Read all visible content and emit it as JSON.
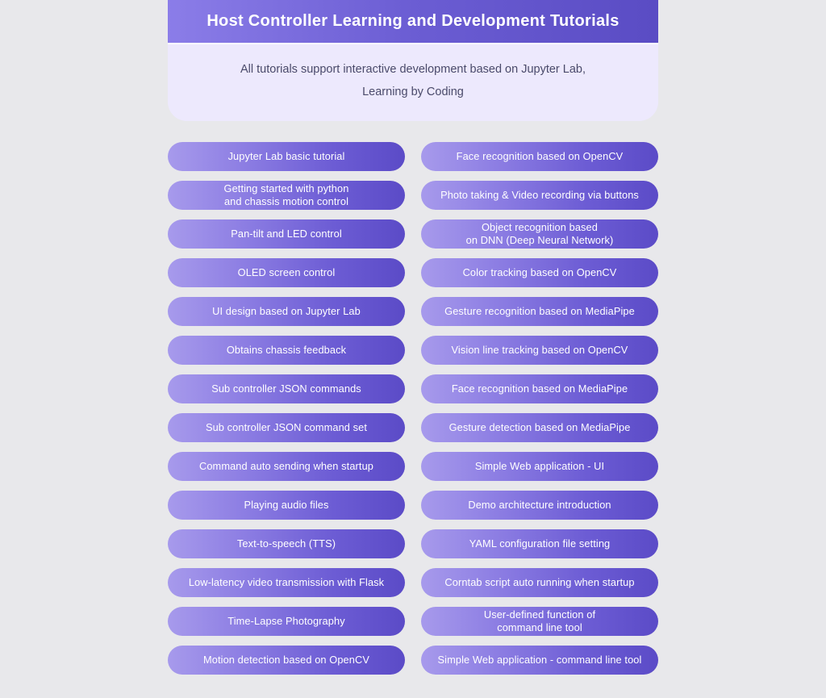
{
  "header": {
    "title": "Host Controller Learning and Development Tutorials",
    "subtitle_line1": "All tutorials support interactive development based on Jupyter Lab,",
    "subtitle_line2": "Learning by Coding"
  },
  "colors": {
    "page_bg": "#e8e8eb",
    "header_card_bg": "#ede9fd",
    "pill_gradient_start": "#a79aec",
    "pill_gradient_mid": "#8a7be2",
    "pill_gradient_end": "#5b4bc7",
    "title_gradient_start": "#8b7de8",
    "title_gradient_end": "#5a4cc4",
    "subtitle_text": "#4a4a6a",
    "pill_text": "#ffffff"
  },
  "left_column": [
    "Jupyter Lab basic tutorial",
    "Getting started with python\nand chassis motion control",
    "Pan-tilt and LED control",
    "OLED screen control",
    "UI design based on Jupyter Lab",
    "Obtains chassis feedback",
    "Sub controller JSON commands",
    "Sub controller JSON command set",
    "Command auto sending when startup",
    "Playing audio files",
    "Text-to-speech (TTS)",
    "Low-latency video transmission with Flask",
    "Time-Lapse Photography",
    "Motion detection based on OpenCV"
  ],
  "right_column": [
    "Face recognition based on OpenCV",
    "Photo taking & Video recording via buttons",
    "Object recognition based\non DNN (Deep Neural Network)",
    "Color tracking based on OpenCV",
    "Gesture recognition based on MediaPipe",
    "Vision line tracking based on OpenCV",
    "Face recognition based on MediaPipe",
    "Gesture detection based on MediaPipe",
    "Simple Web application - UI",
    "Demo architecture introduction",
    "YAML configuration file setting",
    "Corntab script auto running when startup",
    "User-defined function of\ncommand line tool",
    "Simple Web application - command line tool"
  ]
}
